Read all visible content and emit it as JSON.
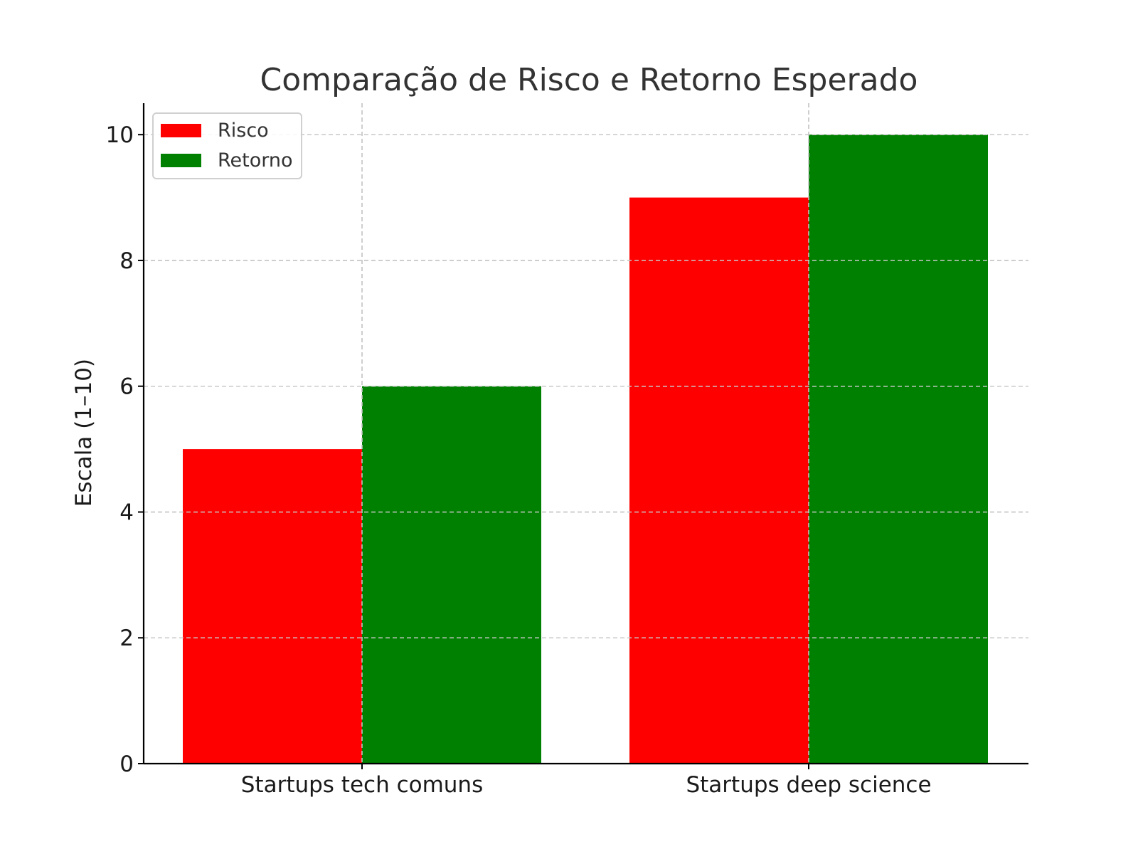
{
  "chart_data": {
    "type": "bar",
    "title": "Comparação de Risco e Retorno Esperado",
    "xlabel": "",
    "ylabel": "Escala (1–10)",
    "categories": [
      "Startups tech comuns",
      "Startups deep science"
    ],
    "series": [
      {
        "name": "Risco",
        "values": [
          5,
          9
        ],
        "color": "#ff0000"
      },
      {
        "name": "Retorno",
        "values": [
          6,
          10
        ],
        "color": "#008000"
      }
    ],
    "ylim": [
      0,
      10.5
    ],
    "yticks": [
      0,
      2,
      4,
      6,
      8,
      10
    ],
    "grid": true,
    "legend": "top-left"
  }
}
